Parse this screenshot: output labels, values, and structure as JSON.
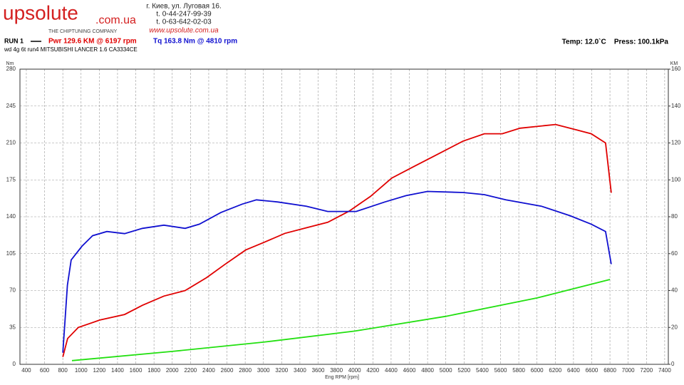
{
  "chart_data": {
    "type": "line",
    "brand": "upsolute",
    "brand_domain": ".com.ua",
    "brand_tagline": "THE CHIPTUNING COMPANY",
    "address": "г. Киев, ул. Луговая 16.",
    "phone_1": "t. 0-44-247-99-39",
    "phone_2": "t. 0-63-642-02-03",
    "website": "www.upsolute.com.ua",
    "run": "RUN 1",
    "power_summary": "Pwr  129.6 KM @ 6197 rpm",
    "torque_summary": "Tq 163.8 Nm @ 4810 rpm",
    "subtitle": "wd 4g 6t run4 MITSUBISHI LANCER 1.6 CA3334CE",
    "conditions": "Temp: 12.0`C    Press: 100.1kPa",
    "ylabel": "Nm",
    "y2label": "KM",
    "xlabel": "Eng RPM [rpm]",
    "grid": true,
    "xlim": [
      330,
      7440
    ],
    "xticks": [
      400,
      600,
      800,
      1000,
      1200,
      1400,
      1600,
      1800,
      2000,
      2200,
      2400,
      2600,
      2800,
      3000,
      3200,
      3400,
      3600,
      3800,
      4000,
      4200,
      4400,
      4600,
      4800,
      5000,
      5200,
      5400,
      5600,
      5800,
      6000,
      6200,
      6400,
      6600,
      6800,
      7000,
      7200,
      7400
    ],
    "ylim": [
      0,
      280
    ],
    "yticks": [
      0,
      35,
      70,
      105,
      140,
      175,
      210,
      245,
      280
    ],
    "y2lim": [
      0,
      160
    ],
    "y2ticks": [
      0,
      20,
      40,
      60,
      80,
      100,
      120,
      140,
      160
    ],
    "series": [
      {
        "name": "Pwr",
        "color": "#e00000",
        "axis": "y2",
        "x": [
          800,
          853,
          970,
          1205,
          1478,
          1673,
          1908,
          2142,
          2377,
          2572,
          2806,
          3001,
          3236,
          3470,
          3705,
          3939,
          4173,
          4408,
          4642,
          4877,
          5189,
          5423,
          5619,
          5814,
          6205,
          6439,
          6595,
          6752,
          6814
        ],
        "values": [
          4,
          14,
          20,
          24,
          27,
          32,
          37,
          40,
          47,
          54,
          62,
          66,
          71,
          74,
          77,
          83,
          91,
          101,
          107,
          113,
          121,
          125,
          125,
          128,
          130,
          127,
          125,
          120,
          93
        ]
      },
      {
        "name": "Tq",
        "color": "#1010d0",
        "x": [
          800,
          850,
          892,
          1010,
          1126,
          1283,
          1478,
          1673,
          1908,
          2142,
          2298,
          2533,
          2767,
          2923,
          3158,
          3470,
          3705,
          4017,
          4330,
          4564,
          4798,
          5189,
          5423,
          5658,
          6048,
          6361,
          6595,
          6752,
          6814
        ],
        "values": [
          11,
          75,
          99,
          112,
          122,
          126,
          124,
          129,
          132,
          129,
          133,
          144,
          152,
          156,
          154,
          150,
          145,
          145,
          154,
          160,
          164,
          163,
          161,
          156,
          150,
          141,
          133,
          126,
          95
        ]
      },
      {
        "color": "#22e010",
        "axis": "y2",
        "x": [
          900,
          2000,
          3000,
          4000,
          5000,
          6000,
          6800
        ],
        "values": [
          2,
          7,
          12,
          18,
          26,
          36,
          46
        ]
      }
    ]
  }
}
